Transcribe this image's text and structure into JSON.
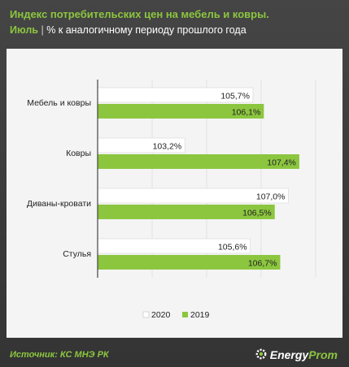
{
  "header": {
    "title": "Индекс потребительских цен на мебель и ковры.",
    "subtitle_highlight": "Июль",
    "subtitle_separator": "|",
    "subtitle_rest": "% к аналогичному периоду прошлого года"
  },
  "footer": {
    "source": "Источник: КС МНЭ РК",
    "brand_part1": "Energy",
    "brand_part2": "Prom",
    "brand_icon": "gear-icon"
  },
  "colors": {
    "series_2020": "#ffffff",
    "series_2019": "#8cc63f",
    "title": "#8cc63f",
    "background": "#3d3d3d",
    "panel": "#f4f4f4"
  },
  "chart_data": {
    "type": "bar",
    "orientation": "horizontal",
    "categories": [
      "Мебель и ковры",
      "Ковры",
      "Диваны-кровати",
      "Стулья"
    ],
    "series": [
      {
        "name": "2020",
        "values": [
          105.7,
          103.2,
          107.0,
          105.6
        ],
        "labels": [
          "105,7%",
          "103,2%",
          "107,0%",
          "105,6%"
        ]
      },
      {
        "name": "2019",
        "values": [
          106.1,
          107.4,
          106.5,
          106.7
        ],
        "labels": [
          "106,1%",
          "107,4%",
          "106,5%",
          "106,7%"
        ]
      }
    ],
    "xlim": [
      100,
      108
    ],
    "grid": true,
    "legend": "bottom"
  }
}
